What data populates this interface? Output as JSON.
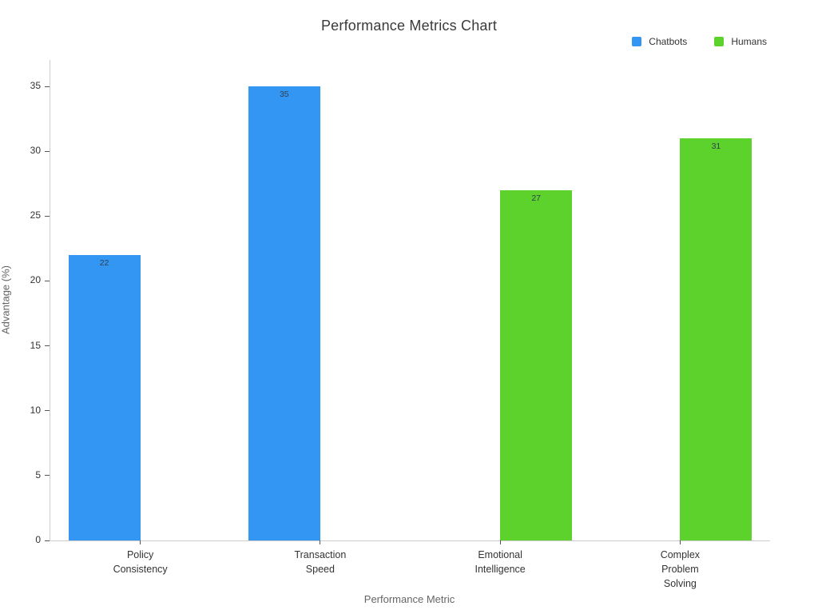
{
  "chart_data": {
    "type": "bar",
    "title": "Performance Metrics Chart",
    "xlabel": "Performance Metric",
    "ylabel": "Advantage (%)",
    "categories": [
      "Policy\nConsistency",
      "Transaction\nSpeed",
      "Emotional\nIntelligence",
      "Complex\nProblem\nSolving"
    ],
    "series": [
      {
        "name": "Chatbots",
        "color": "#3496f3",
        "values": [
          22,
          35,
          null,
          null
        ]
      },
      {
        "name": "Humans",
        "color": "#5dd22c",
        "values": [
          null,
          null,
          27,
          31
        ]
      }
    ],
    "bar_value_labels": [
      22,
      35,
      27,
      31
    ],
    "yticks": [
      0,
      5,
      10,
      15,
      20,
      25,
      30,
      35
    ],
    "ylim": [
      0,
      37
    ],
    "grid": false,
    "legend_position": "top-right",
    "background": "#ffffff"
  }
}
